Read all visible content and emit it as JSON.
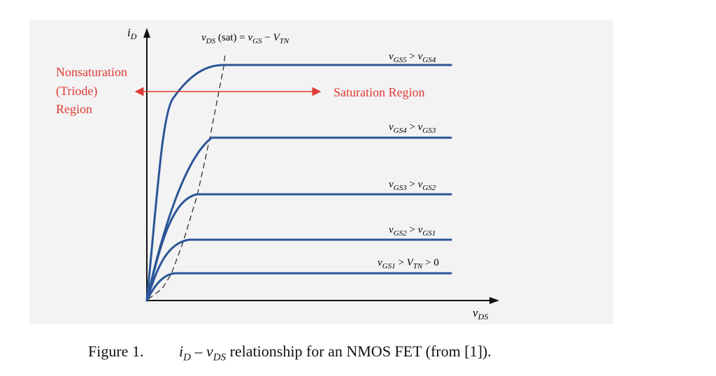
{
  "diagram": {
    "y_axis_var": "i",
    "y_axis_sub": "D",
    "x_axis_var": "v",
    "x_axis_sub": "DS",
    "sat_line_label": {
      "v": "v",
      "sub_ds": "DS",
      "sat": " (sat) = ",
      "v2": "v",
      "sub_gs": "GS",
      "minus": " − ",
      "V": "V",
      "sub_tn": "TN"
    },
    "triode_label": [
      "Nonsaturation",
      "(Triode)",
      "Region"
    ],
    "saturation_label": "Saturation Region",
    "curve_labels": [
      {
        "a": "v",
        "a_sub": "GS5",
        "op": " > ",
        "b": "v",
        "b_sub": "GS4",
        "tail": ""
      },
      {
        "a": "v",
        "a_sub": "GS4",
        "op": " > ",
        "b": "v",
        "b_sub": "GS3",
        "tail": ""
      },
      {
        "a": "v",
        "a_sub": "GS3",
        "op": " > ",
        "b": "v",
        "b_sub": "GS2",
        "tail": ""
      },
      {
        "a": "v",
        "a_sub": "GS2",
        "op": " > ",
        "b": "v",
        "b_sub": "GS1",
        "tail": ""
      },
      {
        "a": "v",
        "a_sub": "GS1",
        "op": " > ",
        "b": "V",
        "b_sub": "TN",
        "tail": " > 0"
      }
    ],
    "colors": {
      "curve": "#2b5597",
      "annotation": "#e03a32",
      "axis": "#111111",
      "panel": "#f3f3f4"
    }
  },
  "caption": {
    "figure": "Figure 1.",
    "i": "i",
    "i_sub": "D",
    "dash": " – ",
    "v": "v",
    "v_sub": "DS",
    "text": " relationship for an NMOS FET (from [1])."
  }
}
